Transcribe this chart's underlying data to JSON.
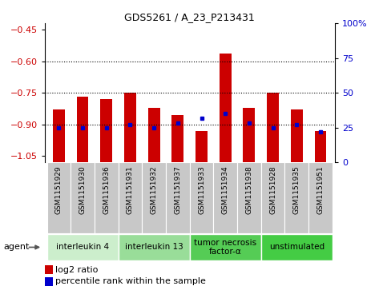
{
  "title": "GDS5261 / A_23_P213431",
  "samples": [
    "GSM1151929",
    "GSM1151930",
    "GSM1151936",
    "GSM1151931",
    "GSM1151932",
    "GSM1151937",
    "GSM1151933",
    "GSM1151934",
    "GSM1151938",
    "GSM1151928",
    "GSM1151935",
    "GSM1151951"
  ],
  "log2_ratios": [
    -0.83,
    -0.77,
    -0.78,
    -0.75,
    -0.82,
    -0.855,
    -0.93,
    -0.565,
    -0.82,
    -0.75,
    -0.83,
    -0.93
  ],
  "percentile_ranks": [
    25,
    25,
    25,
    27,
    25,
    28,
    32,
    35,
    28,
    25,
    27,
    22
  ],
  "bar_color": "#cc0000",
  "dot_color": "#0000cc",
  "ylim_left": [
    -1.08,
    -0.42
  ],
  "ylim_right": [
    0,
    100
  ],
  "yticks_left": [
    -1.05,
    -0.9,
    -0.75,
    -0.6,
    -0.45
  ],
  "yticks_right": [
    0,
    25,
    50,
    75,
    100
  ],
  "hlines": [
    -0.9,
    -0.75,
    -0.6
  ],
  "groups": [
    {
      "label": "interleukin 4",
      "indices": [
        0,
        1,
        2
      ],
      "color": "#cceecc"
    },
    {
      "label": "interleukin 13",
      "indices": [
        3,
        4,
        5
      ],
      "color": "#99dd99"
    },
    {
      "label": "tumor necrosis\nfactor-α",
      "indices": [
        6,
        7,
        8
      ],
      "color": "#55cc55"
    },
    {
      "label": "unstimulated",
      "indices": [
        9,
        10,
        11
      ],
      "color": "#44cc44"
    }
  ],
  "agent_label": "agent",
  "legend_bar_label": "log2 ratio",
  "legend_dot_label": "percentile rank within the sample",
  "background_color": "#ffffff",
  "tick_label_color_left": "#cc0000",
  "tick_label_color_right": "#0000cc",
  "bar_width": 0.5,
  "sample_box_color": "#c8c8c8",
  "bar_bottom": -1.08
}
